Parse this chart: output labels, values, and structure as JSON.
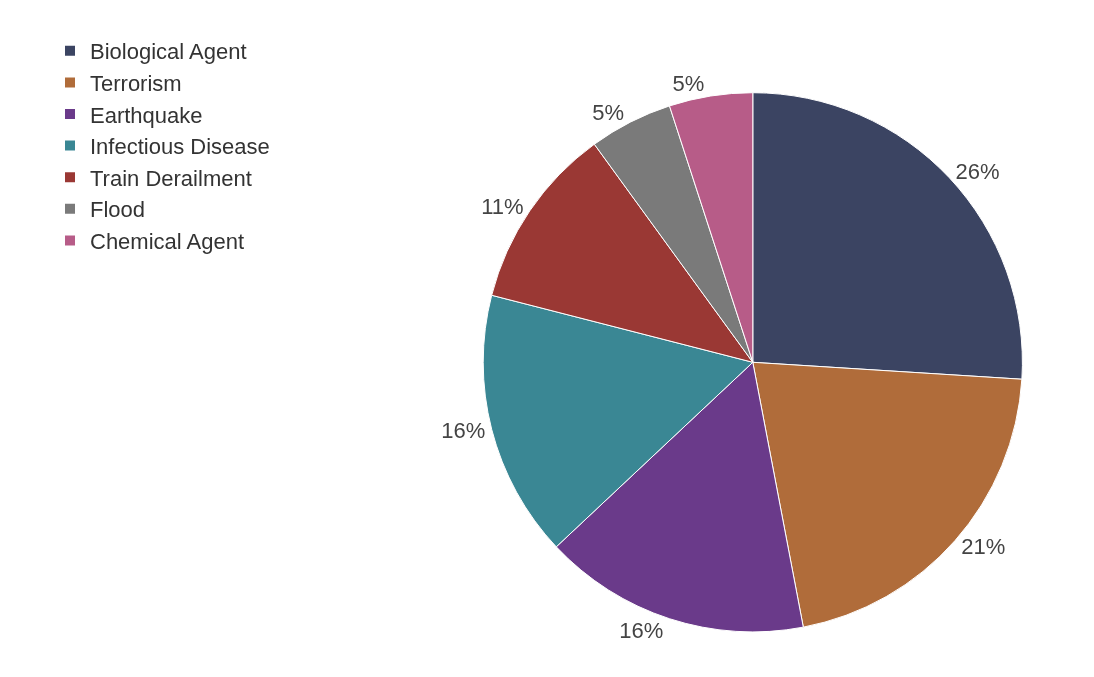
{
  "chart_data": {
    "type": "pie",
    "categories": [
      "Biological Agent",
      "Terrorism",
      "Earthquake",
      "Infectious Disease",
      "Train Derailment",
      "Flood",
      "Chemical Agent"
    ],
    "values": [
      26,
      21,
      16,
      16,
      11,
      5,
      5
    ],
    "value_labels": [
      "26%",
      "21%",
      "16%",
      "16%",
      "11%",
      "5%",
      "5%"
    ],
    "colors": [
      "#3b4462",
      "#b06c3a",
      "#6a3a8a",
      "#3a8794",
      "#9a3834",
      "#7a7a7a",
      "#b75c88"
    ],
    "legend": "top left"
  }
}
